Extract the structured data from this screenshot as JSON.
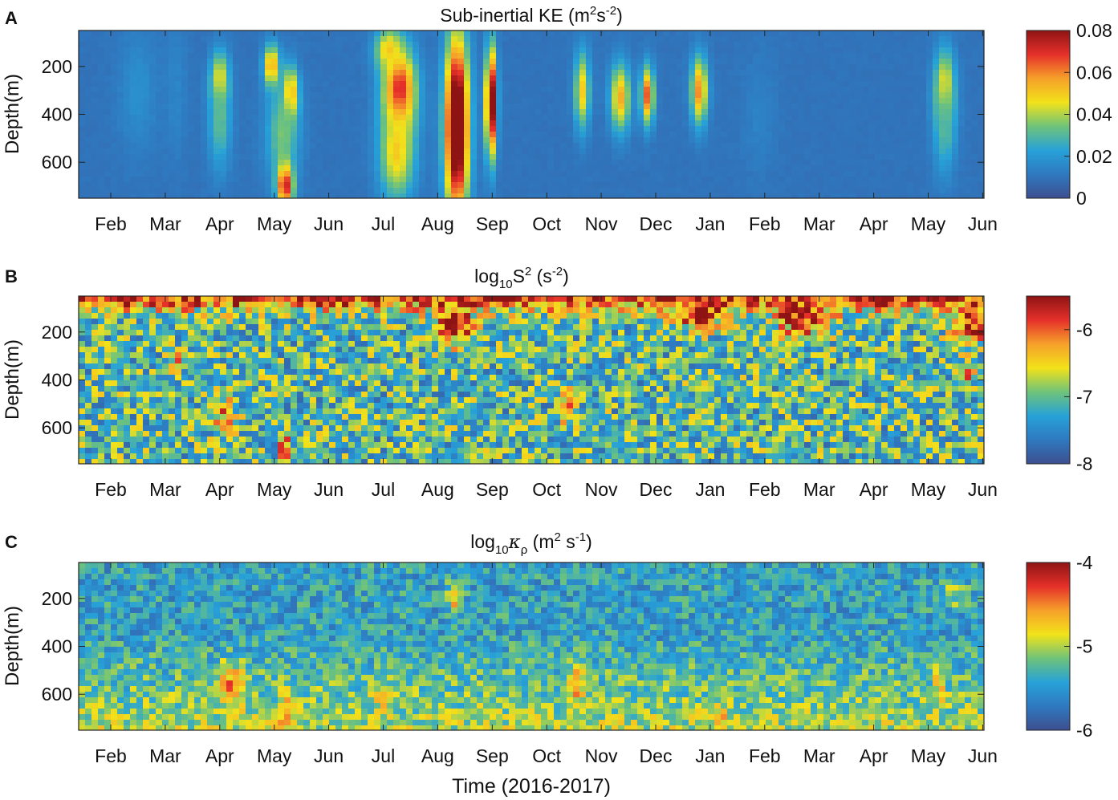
{
  "figure": {
    "xlabel": "Time (2016-2017)"
  },
  "chart_data": [
    {
      "type": "heatmap",
      "panel_letter": "A",
      "title_parts": [
        "Sub-inertial KE (m",
        "2",
        "s",
        "-2",
        ")"
      ],
      "ylabel": "Depth(m)",
      "ylim": [
        750,
        50
      ],
      "yticks": [
        200,
        400,
        600
      ],
      "x_tick_labels": [
        "Feb",
        "Mar",
        "Apr",
        "May",
        "Jun",
        "Jul",
        "Aug",
        "Sep",
        "Oct",
        "Nov",
        "Dec",
        "Jan",
        "Feb",
        "Mar",
        "Apr",
        "May",
        "Jun"
      ],
      "colorbar": {
        "range": [
          0,
          0.08
        ],
        "ticks": [
          0,
          0.02,
          0.04,
          0.06,
          0.08
        ],
        "tick_labels": [
          "0",
          "0.02",
          "0.04",
          "0.06",
          "0.08"
        ]
      },
      "colormap": [
        "#3d4f8f",
        "#2f79c0",
        "#27a2d8",
        "#6fc37a",
        "#f2e21a",
        "#f6a02a",
        "#e5302a",
        "#8e1414"
      ],
      "background_value": 0.01,
      "features": [
        {
          "t": 0.5,
          "d": 300,
          "v": 0.018,
          "tw": 0.35,
          "dh": 250
        },
        {
          "t": 1.2,
          "d": 300,
          "v": 0.015,
          "tw": 0.2,
          "dh": 300
        },
        {
          "t": 2.0,
          "d": 260,
          "v": 0.055,
          "tw": 0.16,
          "dh": 110
        },
        {
          "t": 2.0,
          "d": 430,
          "v": 0.032,
          "tw": 0.2,
          "dh": 200
        },
        {
          "t": 2.95,
          "d": 200,
          "v": 0.06,
          "tw": 0.14,
          "dh": 90
        },
        {
          "t": 3.3,
          "d": 320,
          "v": 0.065,
          "tw": 0.14,
          "dh": 110
        },
        {
          "t": 3.15,
          "d": 480,
          "v": 0.035,
          "tw": 0.3,
          "dh": 200
        },
        {
          "t": 3.2,
          "d": 700,
          "v": 0.075,
          "tw": 0.15,
          "dh": 90
        },
        {
          "t": 5.3,
          "d": 300,
          "v": 0.075,
          "tw": 0.3,
          "dh": 170
        },
        {
          "t": 5.25,
          "d": 560,
          "v": 0.05,
          "tw": 0.32,
          "dh": 200
        },
        {
          "t": 5.1,
          "d": 130,
          "v": 0.05,
          "tw": 0.25,
          "dh": 90
        },
        {
          "t": 6.35,
          "d": 450,
          "v": 0.1,
          "tw": 0.22,
          "dh": 380
        },
        {
          "t": 6.98,
          "d": 350,
          "v": 0.09,
          "tw": 0.1,
          "dh": 230
        },
        {
          "t": 8.65,
          "d": 300,
          "v": 0.05,
          "tw": 0.14,
          "dh": 160
        },
        {
          "t": 9.35,
          "d": 330,
          "v": 0.055,
          "tw": 0.18,
          "dh": 140
        },
        {
          "t": 9.85,
          "d": 320,
          "v": 0.065,
          "tw": 0.12,
          "dh": 120
        },
        {
          "t": 10.8,
          "d": 300,
          "v": 0.06,
          "tw": 0.15,
          "dh": 140
        },
        {
          "t": 11.9,
          "d": 400,
          "v": 0.014,
          "tw": 0.3,
          "dh": 250
        },
        {
          "t": 15.3,
          "d": 300,
          "v": 0.055,
          "tw": 0.18,
          "dh": 160
        },
        {
          "t": 15.3,
          "d": 450,
          "v": 0.03,
          "tw": 0.2,
          "dh": 200
        }
      ]
    },
    {
      "type": "heatmap",
      "panel_letter": "B",
      "title_parts": [
        "log",
        "10",
        "S",
        "2",
        " (s",
        "-2",
        ")"
      ],
      "ylabel": "Depth(m)",
      "ylim": [
        750,
        50
      ],
      "yticks": [
        200,
        400,
        600
      ],
      "x_tick_labels": [
        "Feb",
        "Mar",
        "Apr",
        "May",
        "Jun",
        "Jul",
        "Aug",
        "Sep",
        "Oct",
        "Nov",
        "Dec",
        "Jan",
        "Feb",
        "Mar",
        "Apr",
        "May",
        "Jun"
      ],
      "colorbar": {
        "range": [
          -8,
          -5.5
        ],
        "ticks": [
          -8,
          -7,
          -6
        ],
        "tick_labels": [
          "-8",
          "-7",
          "-6"
        ]
      },
      "colormap": [
        "#3d4f8f",
        "#2f79c0",
        "#27a2d8",
        "#6fc37a",
        "#f2e21a",
        "#f6a02a",
        "#e5302a",
        "#8e1414"
      ],
      "background_value": -7.1,
      "surface_value": -5.6,
      "surface_depth": 110,
      "features": [
        {
          "t": 6.3,
          "d": 170,
          "v": -5.5,
          "tw": 0.35,
          "dh": 80
        },
        {
          "t": 3.2,
          "d": 680,
          "v": -5.9,
          "tw": 0.12,
          "dh": 60
        },
        {
          "t": 2.1,
          "d": 560,
          "v": -6.1,
          "tw": 0.2,
          "dh": 80
        },
        {
          "t": 1.2,
          "d": 330,
          "v": -6.2,
          "tw": 0.15,
          "dh": 50
        },
        {
          "t": 8.4,
          "d": 520,
          "v": -6.1,
          "tw": 0.12,
          "dh": 80
        },
        {
          "t": 15.7,
          "d": 370,
          "v": -6.0,
          "tw": 0.12,
          "dh": 40
        },
        {
          "t": 15.8,
          "d": 170,
          "v": -5.6,
          "tw": 0.35,
          "dh": 80
        },
        {
          "t": 12.7,
          "d": 140,
          "v": -5.6,
          "tw": 0.5,
          "dh": 80
        },
        {
          "t": 10.8,
          "d": 130,
          "v": -5.6,
          "tw": 0.4,
          "dh": 70
        }
      ]
    },
    {
      "type": "heatmap",
      "panel_letter": "C",
      "title_parts": [
        "log",
        "10",
        "κ",
        "ρ",
        " (m",
        "2",
        " s",
        "-1",
        ")"
      ],
      "ylabel": "Depth(m)",
      "ylim": [
        750,
        50
      ],
      "yticks": [
        200,
        400,
        600
      ],
      "x_tick_labels": [
        "Feb",
        "Mar",
        "Apr",
        "May",
        "Jun",
        "Jul",
        "Aug",
        "Sep",
        "Oct",
        "Nov",
        "Dec",
        "Jan",
        "Feb",
        "Mar",
        "Apr",
        "May",
        "Jun"
      ],
      "colorbar": {
        "range": [
          -6,
          -4
        ],
        "ticks": [
          -6,
          -5,
          -4
        ],
        "tick_labels": [
          "-6",
          "-5",
          "-4"
        ]
      },
      "colormap": [
        "#3d4f8f",
        "#2f79c0",
        "#27a2d8",
        "#6fc37a",
        "#f2e21a",
        "#f6a02a",
        "#e5302a",
        "#8e1414"
      ],
      "background_value": -5.45,
      "deep_value": -5.0,
      "features": [
        {
          "t": 2.2,
          "d": 560,
          "v": -4.55,
          "tw": 0.25,
          "dh": 90
        },
        {
          "t": 3.2,
          "d": 680,
          "v": -4.35,
          "tw": 0.12,
          "dh": 70
        },
        {
          "t": 6.3,
          "d": 200,
          "v": -4.6,
          "tw": 0.14,
          "dh": 60
        },
        {
          "t": 8.55,
          "d": 560,
          "v": -4.55,
          "tw": 0.12,
          "dh": 80
        },
        {
          "t": 5.0,
          "d": 620,
          "v": -4.8,
          "tw": 0.2,
          "dh": 100
        },
        {
          "t": 11.2,
          "d": 680,
          "v": -4.6,
          "tw": 0.12,
          "dh": 40
        },
        {
          "t": 15.2,
          "d": 560,
          "v": -4.8,
          "tw": 0.12,
          "dh": 80
        },
        {
          "t": 15.5,
          "d": 180,
          "v": -5.0,
          "tw": 0.2,
          "dh": 60
        }
      ]
    }
  ]
}
